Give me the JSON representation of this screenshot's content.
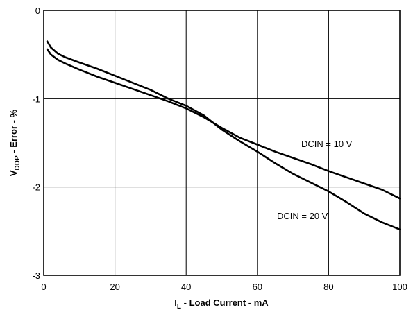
{
  "chart_data": {
    "type": "line",
    "title": "",
    "xlabel": {
      "main": "I",
      "sub": "L",
      "rest": " - Load Current - mA"
    },
    "ylabel": {
      "main": "V",
      "sub": "DDP",
      "rest": " - Error - %"
    },
    "xlim": [
      0,
      100
    ],
    "ylim": [
      -3,
      0
    ],
    "xticks": [
      0,
      20,
      40,
      60,
      80,
      100
    ],
    "yticks": [
      0,
      -1,
      -2,
      -3
    ],
    "grid": true,
    "colors": {
      "series": "#000000",
      "grid": "#000000",
      "background": "#ffffff"
    },
    "series": [
      {
        "name": "DCIN = 10 V",
        "x": [
          1,
          2,
          4,
          6,
          10,
          15,
          20,
          25,
          30,
          35,
          40,
          45,
          50,
          55,
          60,
          65,
          70,
          75,
          80,
          85,
          90,
          95,
          100
        ],
        "values": [
          -0.44,
          -0.5,
          -0.56,
          -0.6,
          -0.67,
          -0.75,
          -0.82,
          -0.89,
          -0.96,
          -1.03,
          -1.11,
          -1.21,
          -1.33,
          -1.44,
          -1.52,
          -1.6,
          -1.67,
          -1.74,
          -1.82,
          -1.89,
          -1.96,
          -2.03,
          -2.13
        ]
      },
      {
        "name": "DCIN = 20 V",
        "x": [
          1,
          2,
          4,
          6,
          10,
          15,
          20,
          25,
          30,
          35,
          40,
          45,
          50,
          55,
          60,
          65,
          70,
          75,
          80,
          85,
          90,
          95,
          100
        ],
        "values": [
          -0.35,
          -0.42,
          -0.49,
          -0.53,
          -0.59,
          -0.66,
          -0.74,
          -0.82,
          -0.9,
          -1.0,
          -1.08,
          -1.19,
          -1.35,
          -1.48,
          -1.6,
          -1.73,
          -1.85,
          -1.95,
          -2.05,
          -2.17,
          -2.3,
          -2.4,
          -2.48
        ]
      }
    ],
    "annotations": [
      {
        "text": "DCIN = 10 V",
        "series": 0
      },
      {
        "text": "DCIN = 20 V",
        "series": 1
      }
    ]
  }
}
